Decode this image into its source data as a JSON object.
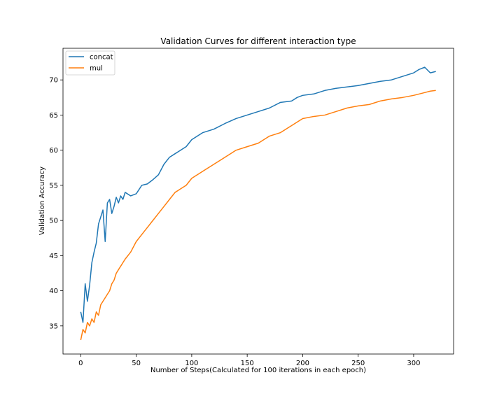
{
  "chart_data": {
    "type": "line",
    "title": "Validation Curves for different interaction type",
    "xlabel": "Number of Steps(Calculated for 100 iterations in each epoch)",
    "ylabel": "Validation Accuracy",
    "xlim": [
      -16,
      336
    ],
    "ylim": [
      31,
      74.5
    ],
    "xticks": [
      0,
      50,
      100,
      150,
      200,
      250,
      300
    ],
    "yticks": [
      35,
      40,
      45,
      50,
      55,
      60,
      65,
      70
    ],
    "grid": false,
    "legend_position": "top-left",
    "series": [
      {
        "name": "concat",
        "color": "#1f77b4",
        "x": [
          0,
          2,
          4,
          6,
          8,
          10,
          12,
          14,
          16,
          18,
          20,
          22,
          24,
          26,
          28,
          30,
          32,
          34,
          36,
          38,
          40,
          45,
          50,
          55,
          60,
          65,
          70,
          75,
          80,
          85,
          90,
          95,
          100,
          110,
          120,
          130,
          140,
          150,
          160,
          170,
          180,
          190,
          195,
          200,
          210,
          220,
          230,
          240,
          250,
          260,
          270,
          280,
          290,
          300,
          305,
          310,
          315,
          320
        ],
        "y": [
          37,
          35.5,
          41,
          38.5,
          40.8,
          44,
          45.5,
          46.8,
          49.5,
          50.5,
          51.5,
          47,
          52.5,
          53,
          51,
          52,
          53.3,
          52.5,
          53.5,
          53,
          54,
          53.5,
          53.8,
          55,
          55.2,
          55.8,
          56.5,
          58,
          59,
          59.5,
          60,
          60.5,
          61.5,
          62.5,
          63,
          63.8,
          64.5,
          65,
          65.5,
          66,
          66.8,
          67,
          67.5,
          67.8,
          68,
          68.5,
          68.8,
          69,
          69.2,
          69.5,
          69.8,
          70,
          70.5,
          71,
          71.5,
          71.8,
          71,
          71.2
        ]
      },
      {
        "name": "mul",
        "color": "#ff7f0e",
        "x": [
          0,
          2,
          4,
          6,
          8,
          10,
          12,
          14,
          16,
          18,
          20,
          22,
          24,
          26,
          28,
          30,
          32,
          34,
          36,
          38,
          40,
          45,
          50,
          55,
          60,
          65,
          70,
          75,
          80,
          85,
          90,
          95,
          100,
          110,
          120,
          130,
          140,
          150,
          160,
          170,
          180,
          190,
          195,
          200,
          210,
          220,
          230,
          240,
          250,
          260,
          270,
          280,
          290,
          300,
          305,
          310,
          315,
          320
        ],
        "y": [
          33,
          34.5,
          34,
          35.5,
          35,
          36,
          35.5,
          37,
          36.5,
          38,
          38.5,
          39,
          39.5,
          40,
          41,
          41.5,
          42.5,
          43,
          43.5,
          44,
          44.5,
          45.5,
          47,
          48,
          49,
          50,
          51,
          52,
          53,
          54,
          54.5,
          55,
          56,
          57,
          58,
          59,
          60,
          60.5,
          61,
          62,
          62.5,
          63.5,
          64,
          64.5,
          64.8,
          65,
          65.5,
          66,
          66.3,
          66.5,
          67,
          67.3,
          67.5,
          67.8,
          68,
          68.2,
          68.4,
          68.5
        ]
      }
    ]
  }
}
